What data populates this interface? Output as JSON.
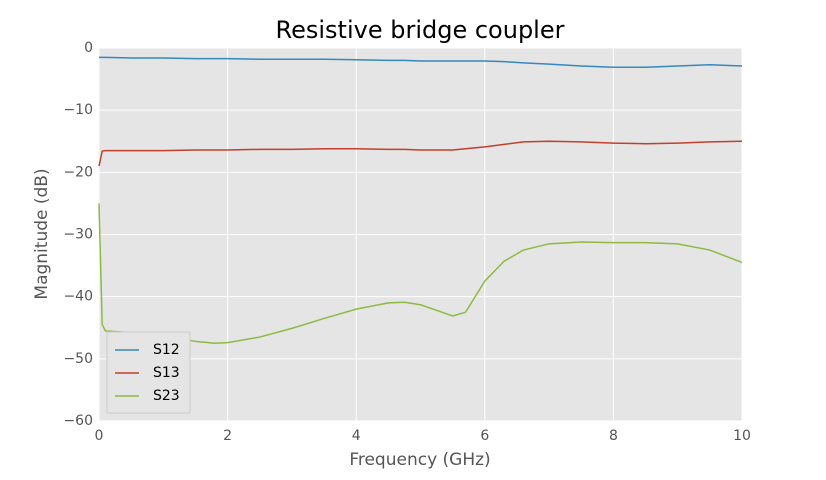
{
  "chart_data": {
    "type": "line",
    "title": "Resistive bridge coupler",
    "x_label": "Frequency (GHz)",
    "y_label": "Magnitude (dB)",
    "x": [
      0,
      0.05,
      0.1,
      0.5,
      1,
      1.5,
      1.8,
      2,
      2.5,
      3,
      3.5,
      4,
      4.5,
      4.75,
      5,
      5.25,
      5.5,
      5.7,
      6,
      6.3,
      6.6,
      7,
      7.5,
      8,
      8.5,
      9,
      9.5,
      10
    ],
    "series": [
      {
        "name": "S12",
        "color": "#348ABD",
        "values": [
          -1.5,
          -1.5,
          -1.5,
          -1.6,
          -1.6,
          -1.7,
          -1.7,
          -1.7,
          -1.8,
          -1.8,
          -1.8,
          -1.9,
          -2.0,
          -2.0,
          -2.1,
          -2.1,
          -2.1,
          -2.1,
          -2.1,
          -2.2,
          -2.4,
          -2.6,
          -2.9,
          -3.1,
          -3.1,
          -2.9,
          -2.7,
          -2.9
        ]
      },
      {
        "name": "S13",
        "color": "#C0402D",
        "values": [
          -19,
          -16.6,
          -16.5,
          -16.5,
          -16.5,
          -16.4,
          -16.4,
          -16.4,
          -16.3,
          -16.3,
          -16.2,
          -16.2,
          -16.3,
          -16.3,
          -16.4,
          -16.4,
          -16.4,
          -16.2,
          -15.9,
          -15.5,
          -15.1,
          -15.0,
          -15.1,
          -15.3,
          -15.4,
          -15.3,
          -15.1,
          -15.0
        ]
      },
      {
        "name": "S23",
        "color": "#8EBA42",
        "values": [
          -25,
          -44.5,
          -45.5,
          -45.8,
          -46.3,
          -47.2,
          -47.5,
          -47.4,
          -46.5,
          -45.1,
          -43.5,
          -42,
          -41.0,
          -40.9,
          -41.3,
          -42.2,
          -43.1,
          -42.5,
          -37.5,
          -34.3,
          -32.5,
          -31.5,
          -31.2,
          -31.3,
          -31.3,
          -31.5,
          -32.5,
          -34.5
        ]
      }
    ],
    "xlim": [
      0,
      10
    ],
    "xticks": [
      0,
      2,
      4,
      6,
      8,
      10
    ],
    "ylim": [
      -60,
      0
    ],
    "yticks": [
      {
        "value": -60,
        "label": "−60"
      },
      {
        "value": -50,
        "label": "−50"
      },
      {
        "value": -40,
        "label": "−40"
      },
      {
        "value": -30,
        "label": "−30"
      },
      {
        "value": -20,
        "label": "−20"
      },
      {
        "value": -10,
        "label": "−10"
      },
      0
    ],
    "grid": true,
    "legend": "lower left"
  }
}
